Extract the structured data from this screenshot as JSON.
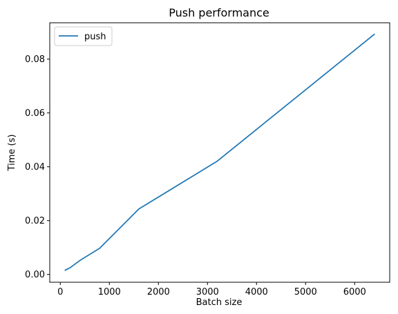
{
  "chart_data": {
    "type": "line",
    "title": "Push performance",
    "xlabel": "Batch size",
    "ylabel": "Time (s)",
    "xlim": [
      -215,
      6715
    ],
    "ylim": [
      -0.0029,
      0.0935
    ],
    "x_ticks": [
      0,
      1000,
      2000,
      3000,
      4000,
      5000,
      6000
    ],
    "x_tick_labels": [
      "0",
      "1000",
      "2000",
      "3000",
      "4000",
      "5000",
      "6000"
    ],
    "y_ticks": [
      0.0,
      0.02,
      0.04,
      0.06,
      0.08
    ],
    "y_tick_labels": [
      "0.00",
      "0.02",
      "0.04",
      "0.06",
      "0.08"
    ],
    "grid": false,
    "legend_placement": "upper-left",
    "series": [
      {
        "name": "push",
        "color": "#1f77b4",
        "x": [
          100,
          200,
          400,
          800,
          1600,
          3200,
          6400
        ],
        "y": [
          0.0016,
          0.0025,
          0.0052,
          0.0097,
          0.0243,
          0.0421,
          0.0892
        ]
      }
    ]
  }
}
